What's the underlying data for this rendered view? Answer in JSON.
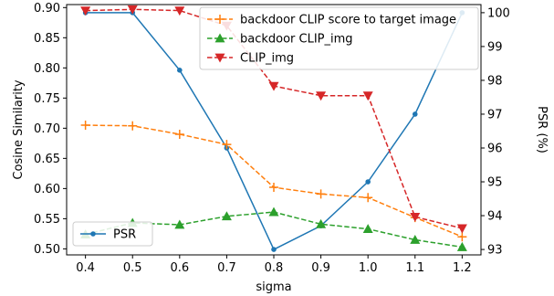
{
  "chart_data": {
    "type": "line",
    "xlabel": "sigma",
    "ylabel_left": "Cosine Similarity",
    "ylabel_right": "PSR (%)",
    "x": [
      0.4,
      0.5,
      0.6,
      0.7,
      0.8,
      0.9,
      1.0,
      1.1,
      1.2
    ],
    "x_tick_labels": [
      "0.4",
      "0.5",
      "0.6",
      "0.7",
      "0.8",
      "0.9",
      "1.0",
      "1.1",
      "1.2"
    ],
    "xlim": [
      0.36,
      1.24
    ],
    "ylim_left": [
      0.49,
      0.905
    ],
    "ylim_right": [
      92.84,
      100.24
    ],
    "y_left_ticks": [
      0.5,
      0.55,
      0.6,
      0.65,
      0.7,
      0.75,
      0.8,
      0.85,
      0.9
    ],
    "y_left_tick_labels": [
      "0.50",
      "0.55",
      "0.60",
      "0.65",
      "0.70",
      "0.75",
      "0.80",
      "0.85",
      "0.90"
    ],
    "y_right_ticks": [
      93,
      94,
      95,
      96,
      97,
      98,
      99,
      100
    ],
    "y_right_tick_labels": [
      "93",
      "94",
      "95",
      "96",
      "97",
      "98",
      "99",
      "100"
    ],
    "grid": false,
    "series_left": [
      {
        "name": "backdoor CLIP score to target image",
        "color": "#ff7f0e",
        "marker": "plus",
        "values": [
          0.705,
          0.704,
          0.69,
          0.673,
          0.602,
          0.591,
          0.585,
          0.552,
          0.52
        ]
      },
      {
        "name": "backdoor CLIP_img",
        "color": "#2ca02c",
        "marker": "triangle-up",
        "values": [
          0.524,
          0.543,
          0.54,
          0.554,
          0.561,
          0.541,
          0.533,
          0.515,
          0.503
        ]
      },
      {
        "name": "CLIP_img",
        "color": "#d62728",
        "marker": "triangle-down",
        "values": [
          0.895,
          0.897,
          0.895,
          0.87,
          0.77,
          0.754,
          0.754,
          0.553,
          0.534
        ]
      }
    ],
    "series_right": [
      {
        "name": "PSR",
        "color": "#1f77b4",
        "marker": "circle",
        "values": [
          100.0,
          100.0,
          98.3,
          96.0,
          93.0,
          93.7,
          95.0,
          97.0,
          100.0
        ]
      }
    ],
    "legend_left_placement": "top-right",
    "legend_right_placement": "bottom-left"
  }
}
